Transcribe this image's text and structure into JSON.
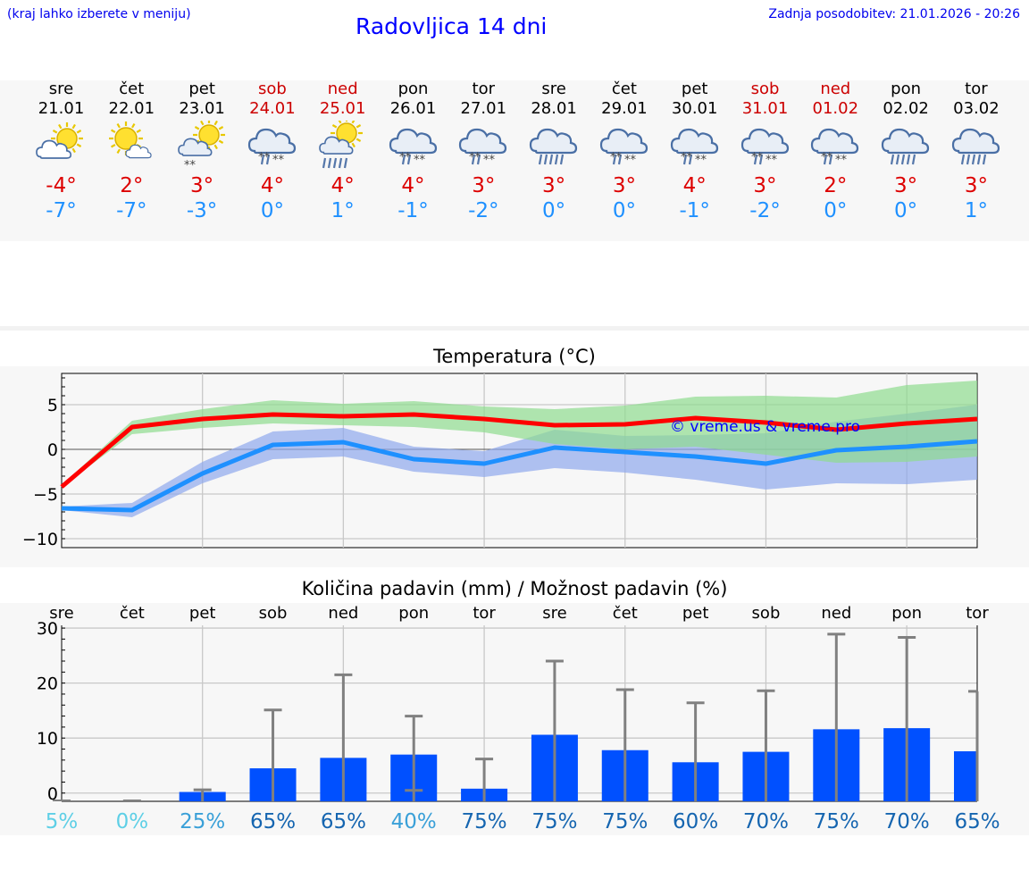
{
  "header": {
    "left_note": "(kraj lahko izberete v meniju)",
    "title": "Radovljica 14 dni",
    "updated": "Zadnja posodobitev: 21.01.2026 - 20:26"
  },
  "days": [
    {
      "name": "sre",
      "date": "21.01",
      "weekend": false,
      "icon": "sun-cloud-icon",
      "tmax": "-4°",
      "tmin": "-7°"
    },
    {
      "name": "čet",
      "date": "22.01",
      "weekend": false,
      "icon": "sun-small-cloud-icon",
      "tmax": "2°",
      "tmin": "-7°"
    },
    {
      "name": "pet",
      "date": "23.01",
      "weekend": false,
      "icon": "sun-cloud-snow-icon",
      "tmax": "3°",
      "tmin": "-3°"
    },
    {
      "name": "sob",
      "date": "24.01",
      "weekend": true,
      "icon": "cloud-sleet-icon",
      "tmax": "4°",
      "tmin": "0°"
    },
    {
      "name": "ned",
      "date": "25.01",
      "weekend": true,
      "icon": "sun-cloud-rain-icon",
      "tmax": "4°",
      "tmin": "1°"
    },
    {
      "name": "pon",
      "date": "26.01",
      "weekend": false,
      "icon": "cloud-sleet-icon",
      "tmax": "4°",
      "tmin": "-1°"
    },
    {
      "name": "tor",
      "date": "27.01",
      "weekend": false,
      "icon": "cloud-sleet-icon",
      "tmax": "3°",
      "tmin": "-2°"
    },
    {
      "name": "sre",
      "date": "28.01",
      "weekend": false,
      "icon": "cloud-rain-icon",
      "tmax": "3°",
      "tmin": "0°"
    },
    {
      "name": "čet",
      "date": "29.01",
      "weekend": false,
      "icon": "cloud-sleet-icon",
      "tmax": "3°",
      "tmin": "0°"
    },
    {
      "name": "pet",
      "date": "30.01",
      "weekend": false,
      "icon": "cloud-sleet-icon",
      "tmax": "4°",
      "tmin": "-1°"
    },
    {
      "name": "sob",
      "date": "31.01",
      "weekend": true,
      "icon": "cloud-sleet-icon",
      "tmax": "3°",
      "tmin": "-2°"
    },
    {
      "name": "ned",
      "date": "01.02",
      "weekend": true,
      "icon": "cloud-sleet-icon",
      "tmax": "2°",
      "tmin": "0°"
    },
    {
      "name": "pon",
      "date": "02.02",
      "weekend": false,
      "icon": "cloud-rain-icon",
      "tmax": "3°",
      "tmin": "0°"
    },
    {
      "name": "tor",
      "date": "03.02",
      "weekend": false,
      "icon": "cloud-rain-icon",
      "tmax": "3°",
      "tmin": "1°"
    }
  ],
  "watermark": "© vreme.us & vreme.pro",
  "colors": {
    "max_line": "#ff0000",
    "min_line": "#1e90ff",
    "max_band": "#8fdc8f",
    "min_band": "#8fa8ec",
    "bar": "#0050ff",
    "whisker": "#808080"
  },
  "chart_data": [
    {
      "type": "line",
      "title": "Temperatura (°C)",
      "categories": [
        "sre",
        "čet",
        "pet",
        "sob",
        "ned",
        "pon",
        "tor",
        "sre",
        "čet",
        "pet",
        "sob",
        "ned",
        "pon",
        "tor"
      ],
      "ylim": [
        -11,
        8.5
      ],
      "yticks": [
        5,
        0,
        -5,
        -10
      ],
      "ytick_labels": [
        "5",
        "0",
        "−5",
        "−10"
      ],
      "series": [
        {
          "name": "Tmax",
          "values": [
            -4.2,
            2.5,
            3.4,
            3.9,
            3.7,
            3.9,
            3.4,
            2.7,
            2.8,
            3.5,
            3.0,
            2.2,
            2.9,
            3.4
          ]
        },
        {
          "name": "Tmin",
          "values": [
            -6.6,
            -6.8,
            -2.7,
            0.5,
            0.8,
            -1.1,
            -1.6,
            0.2,
            -0.3,
            -0.8,
            -1.6,
            -0.1,
            0.3,
            0.9
          ]
        },
        {
          "name": "Tmax spread low",
          "values": [
            -4.2,
            1.7,
            2.4,
            2.9,
            2.7,
            2.5,
            1.9,
            0.6,
            0.0,
            0.3,
            -0.6,
            -1.5,
            -1.4,
            -0.8
          ]
        },
        {
          "name": "Tmax spread high",
          "values": [
            -4.0,
            3.2,
            4.5,
            5.5,
            5.1,
            5.4,
            4.8,
            4.5,
            4.9,
            5.9,
            6.0,
            5.8,
            7.2,
            7.7
          ]
        },
        {
          "name": "Tmin spread low",
          "values": [
            -6.8,
            -7.6,
            -3.8,
            -1.1,
            -0.8,
            -2.5,
            -3.1,
            -2.1,
            -2.6,
            -3.4,
            -4.5,
            -3.8,
            -3.9,
            -3.4
          ]
        },
        {
          "name": "Tmin spread high",
          "values": [
            -6.4,
            -6.0,
            -1.4,
            2.0,
            2.4,
            0.3,
            -0.2,
            2.2,
            1.5,
            1.6,
            1.8,
            3.1,
            4.0,
            5.0
          ]
        }
      ]
    },
    {
      "type": "bar",
      "title": "Količina padavin (mm) / Možnost padavin (%)",
      "categories": [
        "sre",
        "čet",
        "pet",
        "sob",
        "ned",
        "pon",
        "tor",
        "sre",
        "čet",
        "pet",
        "sob",
        "ned",
        "pon",
        "tor"
      ],
      "ylim": [
        -1.5,
        30.5
      ],
      "yticks": [
        30,
        20,
        10,
        0
      ],
      "values": [
        0,
        0,
        0.2,
        4.5,
        6.4,
        7.0,
        0.8,
        10.6,
        7.8,
        5.6,
        7.5,
        11.6,
        11.8,
        7.6
      ],
      "whisker_low": [
        0,
        0,
        0,
        0,
        0,
        0.5,
        0,
        0,
        0,
        0,
        0,
        0,
        0,
        0
      ],
      "whisker_high": [
        0,
        0,
        0.6,
        15.1,
        21.5,
        14.0,
        6.2,
        24.0,
        18.8,
        16.4,
        18.6,
        28.9,
        28.3,
        18.5
      ],
      "probability": [
        "5%",
        "0%",
        "25%",
        "65%",
        "65%",
        "40%",
        "75%",
        "75%",
        "75%",
        "60%",
        "70%",
        "75%",
        "70%",
        "65%"
      ],
      "probability_colors": [
        "#5ecfe6",
        "#5ecfe6",
        "#3aa0d8",
        "#1565b0",
        "#1565b0",
        "#3aa0d8",
        "#1565b0",
        "#1565b0",
        "#1565b0",
        "#1565b0",
        "#1565b0",
        "#1565b0",
        "#1565b0",
        "#1565b0"
      ]
    }
  ]
}
